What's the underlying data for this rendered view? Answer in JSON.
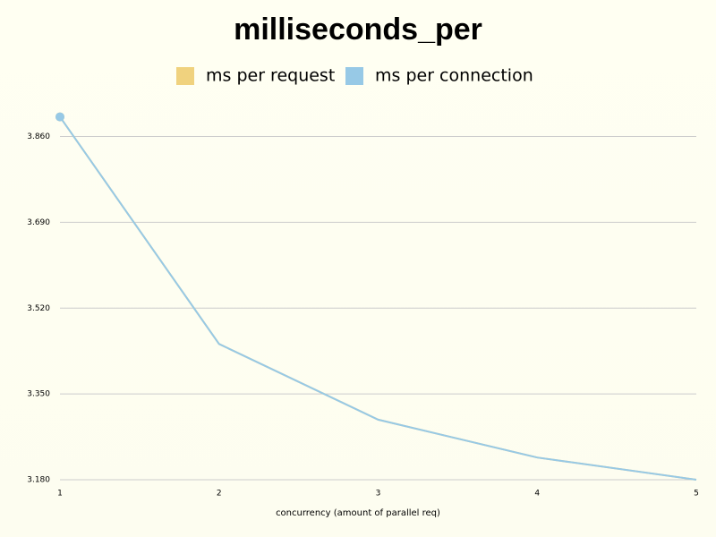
{
  "chart_data": {
    "type": "line",
    "title": "milliseconds_per",
    "x": [
      1,
      2,
      3,
      4,
      5
    ],
    "series": [
      {
        "name": "ms per request",
        "color": "#f0d27e",
        "values": [
          3.899,
          3.449,
          3.299,
          3.224,
          3.18
        ]
      },
      {
        "name": "ms per connection",
        "color": "#97c9e6",
        "values": [
          3.899,
          3.449,
          3.299,
          3.224,
          3.18
        ]
      }
    ],
    "xlabel": "concurrency (amount of parallel req)",
    "xlim": [
      1,
      5
    ],
    "xticks": [
      1,
      2,
      3,
      4,
      5
    ],
    "ylim": [
      3.18,
      3.9
    ],
    "yticks": [
      {
        "value": 3.18,
        "label": "3.180"
      },
      {
        "value": 3.35,
        "label": "3.350"
      },
      {
        "value": 3.52,
        "label": "3.520"
      },
      {
        "value": 3.69,
        "label": "3.690"
      },
      {
        "value": 3.86,
        "label": "3.860"
      }
    ],
    "grid": true
  }
}
